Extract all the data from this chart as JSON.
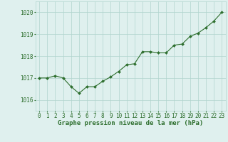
{
  "x": [
    0,
    1,
    2,
    3,
    4,
    5,
    6,
    7,
    8,
    9,
    10,
    11,
    12,
    13,
    14,
    15,
    16,
    17,
    18,
    19,
    20,
    21,
    22,
    23
  ],
  "y": [
    1017.0,
    1017.0,
    1017.1,
    1017.0,
    1016.6,
    1016.3,
    1016.6,
    1016.6,
    1016.85,
    1017.05,
    1017.3,
    1017.6,
    1017.65,
    1018.2,
    1018.2,
    1018.15,
    1018.15,
    1018.5,
    1018.55,
    1018.9,
    1019.05,
    1019.3,
    1019.6,
    1020.0
  ],
  "line_color": "#2d6e2d",
  "marker_color": "#2d6e2d",
  "bg_color": "#dff0ee",
  "grid_color": "#b0d4ce",
  "xlabel": "Graphe pression niveau de la mer (hPa)",
  "xlabel_color": "#2d6e2d",
  "tick_label_color": "#2d6e2d",
  "ylim": [
    1015.5,
    1020.5
  ],
  "yticks": [
    1016,
    1017,
    1018,
    1019,
    1020
  ],
  "xlim": [
    -0.5,
    23.5
  ],
  "xticks": [
    0,
    1,
    2,
    3,
    4,
    5,
    6,
    7,
    8,
    9,
    10,
    11,
    12,
    13,
    14,
    15,
    16,
    17,
    18,
    19,
    20,
    21,
    22,
    23
  ],
  "xtick_labels": [
    "0",
    "1",
    "2",
    "3",
    "4",
    "5",
    "6",
    "7",
    "8",
    "9",
    "10",
    "11",
    "12",
    "13",
    "14",
    "15",
    "16",
    "17",
    "18",
    "19",
    "20",
    "21",
    "22",
    "23"
  ],
  "ytick_labels": [
    "1016",
    "1017",
    "1018",
    "1019",
    "1020"
  ],
  "tick_fontsize": 5.5,
  "xlabel_fontsize": 6.5
}
